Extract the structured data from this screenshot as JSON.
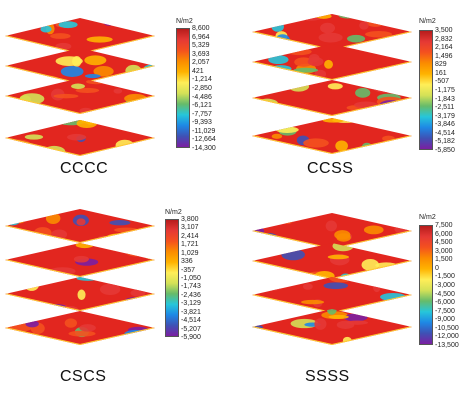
{
  "colormap": [
    "#7b1fa2",
    "#3f51b5",
    "#1e88e5",
    "#26c6da",
    "#66bb6a",
    "#d4e157",
    "#ffee58",
    "#ffb300",
    "#fb8c00",
    "#f4511e",
    "#e53935",
    "#b71c1c"
  ],
  "panels": [
    {
      "label": "CCCC",
      "unit": "N/m2",
      "ticks": [
        "8,600",
        "6,964",
        "5,329",
        "3,693",
        "2,057",
        "421",
        "-1,214",
        "-2,850",
        "-4,486",
        "-6,121",
        "-7,757",
        "-9,393",
        "-11,029",
        "-12,664",
        "-14,300"
      ]
    },
    {
      "label": "CCSS",
      "unit": "N/m2",
      "ticks": [
        "3,500",
        "2,832",
        "2,164",
        "1,496",
        "829",
        "161",
        "-507",
        "-1,175",
        "-1,843",
        "-2,511",
        "-3,179",
        "-3,846",
        "-4,514",
        "-5,182",
        "-5,850"
      ]
    },
    {
      "label": "CSCS",
      "unit": "N/m2",
      "ticks": [
        "3,800",
        "3,107",
        "2,414",
        "1,721",
        "1,029",
        "336",
        "-357",
        "-1,050",
        "-1,743",
        "-2,436",
        "-3,129",
        "-3,821",
        "-4,514",
        "-5,207",
        "-5,900"
      ]
    },
    {
      "label": "SSSS",
      "unit": "N/m2",
      "ticks": [
        "7,500",
        "6,000",
        "4,500",
        "3,000",
        "1,500",
        "0",
        "-1,500",
        "-3,000",
        "-4,500",
        "-6,000",
        "-7,500",
        "-9,000",
        "-10,500",
        "-12,000",
        "-13,500"
      ]
    }
  ]
}
